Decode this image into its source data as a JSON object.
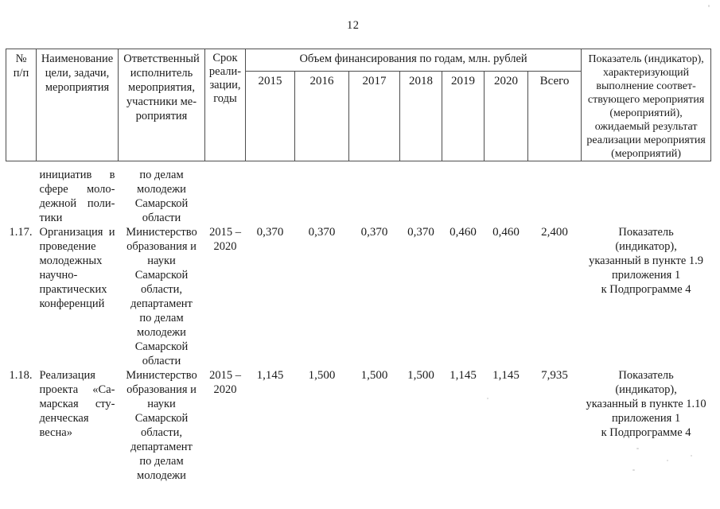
{
  "page": {
    "number": "12"
  },
  "table": {
    "header": {
      "num": "№\nп/п",
      "name": "Наименование\nцели, задачи,\nмероприятия",
      "executor": "Ответственный\nисполнитель\nмероприятия,\nучастники ме-\nроприятия",
      "term": "Срок\nреали-\nзации,\nгоды",
      "financing": "Объем финансирования по годам, млн. рублей",
      "years": [
        "2015",
        "2016",
        "2017",
        "2018",
        "2019",
        "2020",
        "Всего"
      ],
      "indicator": "Показатель (индикатор),\nхарактеризующий\nвыполнение соответ-\nствующего мероприятия\n(мероприятий),\nожидаемый результат\nреализации мероприятия\n(мероприятий)"
    },
    "rows": [
      {
        "num": "",
        "name": "инициатив в\nсфере моло-\nдежной поли-\nтики",
        "executor": "по делам\nмолодежи\nСамарской\nобласти",
        "term": "",
        "values": [
          "",
          "",
          "",
          "",
          "",
          "",
          ""
        ],
        "indicator": ""
      },
      {
        "num": "1.17.",
        "name": "Организация и\nпроведение\nмолодежных\nнаучно-\nпрактических\nконференций",
        "executor": "Министерство\nобразования и\nнауки\nСамарской\nобласти,\nдепартамент\nпо делам\nмолодежи\nСамарской\nобласти",
        "term": "2015 –\n2020",
        "values": [
          "0,370",
          "0,370",
          "0,370",
          "0,370",
          "0,460",
          "0,460",
          "2,400"
        ],
        "indicator": "Показатель\n(индикатор),\nуказанный в пункте 1.9\nприложения 1\nк Подпрограмме 4"
      },
      {
        "num": "1.18.",
        "name": "Реализация\nпроекта «Са-\nмарская сту-\nденческая\nвесна»",
        "executor": "Министерство\nобразования и\nнауки\nСамарской\nобласти,\nдепартамент\nпо делам\nмолодежи",
        "term": "2015 –\n2020",
        "values": [
          "1,145",
          "1,500",
          "1,500",
          "1,500",
          "1,145",
          "1,145",
          "7,935"
        ],
        "indicator": "Показатель\n(индикатор),\nуказанный в пункте 1.10\nприложения 1\nк Подпрограмме 4"
      }
    ]
  }
}
